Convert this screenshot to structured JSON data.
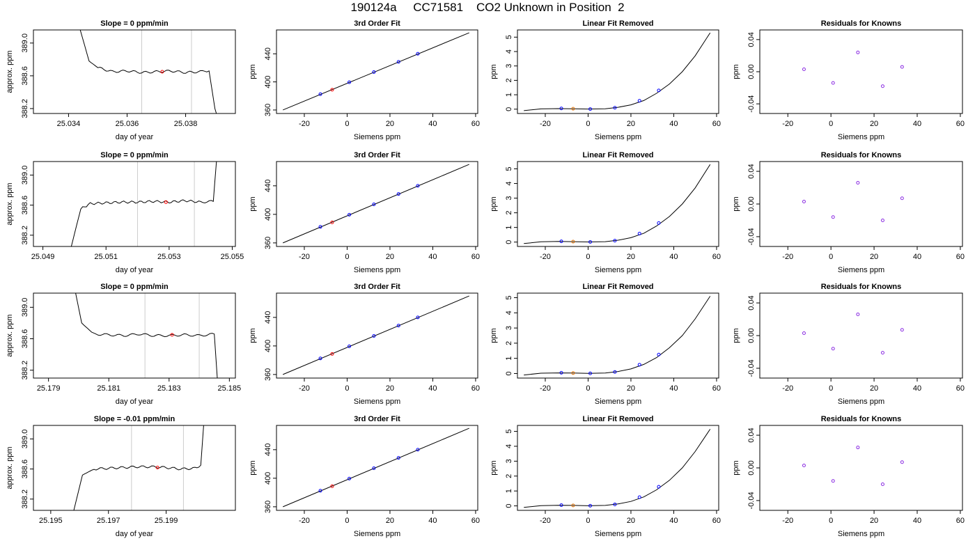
{
  "header": {
    "title": "190124a     CC71581    CO2 Unknown in Position  2"
  },
  "colors": {
    "trace": "#000000",
    "marker_line": "#cccccc",
    "unknown_point": "#ff0000",
    "known_point": "#0000ff",
    "fit_unknown": "#e07000",
    "residual": "#8a2be2",
    "frame": "#000000"
  },
  "chart_data": [
    {
      "type": "line",
      "title": "Slope =  0  ppm/min",
      "xlabel": "day of year",
      "ylabel": "approx. ppm",
      "xticks": [
        "25.034",
        "25.036",
        "25.038"
      ],
      "yticks": [
        "388.2",
        "388.6",
        "389.0"
      ],
      "xlim": [
        25.0328,
        25.0397
      ],
      "ylim": [
        388.14,
        389.16
      ],
      "x": [
        25.0344,
        25.0347,
        25.035,
        25.0355,
        25.036,
        25.0365,
        25.037,
        25.0375,
        25.038,
        25.0385,
        25.0388,
        25.039,
        25.03905
      ],
      "y": [
        389.16,
        388.78,
        388.7,
        388.65,
        388.66,
        388.64,
        388.65,
        388.66,
        388.64,
        388.65,
        388.66,
        388.2,
        388.14
      ],
      "markers": [
        25.0365,
        25.0382
      ],
      "point": {
        "x": 25.0372,
        "y": 388.65
      }
    },
    {
      "type": "scatter",
      "title": "3rd Order Fit",
      "xlabel": "Siemens ppm",
      "ylabel": "ppm",
      "xticks": [
        "-20",
        "0",
        "20",
        "40",
        "60"
      ],
      "yticks": [
        "360",
        "400",
        "440"
      ],
      "xlim": [
        -33,
        61
      ],
      "ylim": [
        355,
        474
      ],
      "fit": [
        [
          -30,
          360
        ],
        [
          57,
          470
        ]
      ],
      "knowns": [
        [
          -12.5,
          382.5
        ],
        [
          1,
          399.5
        ],
        [
          12.5,
          414
        ],
        [
          24,
          428.5
        ],
        [
          33,
          440
        ]
      ],
      "unknown": [
        -7,
        388.8
      ]
    },
    {
      "type": "line",
      "title": "Linear Fit Removed",
      "xlabel": "Siemens ppm",
      "ylabel": "ppm",
      "xticks": [
        "-20",
        "0",
        "20",
        "40",
        "60"
      ],
      "yticks": [
        "0",
        "1",
        "2",
        "3",
        "4",
        "5"
      ],
      "xlim": [
        -33,
        61
      ],
      "ylim": [
        -0.3,
        5.5
      ],
      "x": [
        -30,
        -22,
        -14,
        -7,
        0,
        8,
        14,
        20,
        26,
        32,
        38,
        44,
        50,
        57
      ],
      "y": [
        -0.1,
        0.02,
        0.04,
        0.03,
        0.01,
        0.03,
        0.13,
        0.3,
        0.6,
        1.1,
        1.75,
        2.6,
        3.7,
        5.3
      ],
      "knowns": [
        [
          -12.5,
          0.05
        ],
        [
          1,
          0.01
        ],
        [
          12.5,
          0.1
        ],
        [
          24,
          0.58
        ],
        [
          33,
          1.3
        ]
      ],
      "unknown": [
        -7,
        0.03
      ]
    },
    {
      "type": "scatter",
      "title": "Residuals for Knowns",
      "xlabel": "Siemens ppm",
      "ylabel": "ppm",
      "xticks": [
        "-20",
        "0",
        "20",
        "40",
        "60"
      ],
      "yticks": [
        "-0.04",
        "0.00",
        "0.04"
      ],
      "xlim": [
        -33,
        61
      ],
      "ylim": [
        -0.052,
        0.052
      ],
      "points": [
        [
          -12.5,
          0.003
        ],
        [
          1,
          -0.014
        ],
        [
          12.5,
          0.024
        ],
        [
          24,
          -0.018
        ],
        [
          33,
          0.006
        ]
      ]
    },
    {
      "type": "line",
      "title": "Slope =  0  ppm/min",
      "xlabel": "day of year",
      "ylabel": "approx. ppm",
      "xticks": [
        "25.049",
        "25.051",
        "25.053",
        "25.055"
      ],
      "yticks": [
        "388.2",
        "388.6",
        "389.0"
      ],
      "xlim": [
        25.0487,
        25.0551
      ],
      "ylim": [
        388.05,
        389.18
      ],
      "x": [
        25.0499,
        25.0502,
        25.0505,
        25.051,
        25.0515,
        25.052,
        25.0525,
        25.053,
        25.0535,
        25.054,
        25.0544,
        25.0545
      ],
      "y": [
        388.05,
        388.55,
        388.62,
        388.63,
        388.64,
        388.64,
        388.65,
        388.64,
        388.66,
        388.64,
        388.65,
        389.18
      ],
      "markers": [
        25.052,
        25.0538
      ],
      "point": {
        "x": 25.0529,
        "y": 388.64
      }
    },
    {
      "type": "scatter",
      "title": "3rd Order Fit",
      "xlabel": "Siemens ppm",
      "ylabel": "ppm",
      "xticks": [
        "-20",
        "0",
        "20",
        "40",
        "60"
      ],
      "yticks": [
        "360",
        "400",
        "440"
      ],
      "xlim": [
        -33,
        61
      ],
      "ylim": [
        355,
        474
      ],
      "fit": [
        [
          -30,
          360
        ],
        [
          57,
          470
        ]
      ],
      "knowns": [
        [
          -12.5,
          382.5
        ],
        [
          1,
          399.5
        ],
        [
          12.5,
          414
        ],
        [
          24,
          428.5
        ],
        [
          33,
          440
        ]
      ],
      "unknown": [
        -7,
        388.8
      ]
    },
    {
      "type": "line",
      "title": "Linear Fit Removed",
      "xlabel": "Siemens ppm",
      "ylabel": "ppm",
      "xticks": [
        "-20",
        "0",
        "20",
        "40",
        "60"
      ],
      "yticks": [
        "0",
        "1",
        "2",
        "3",
        "4",
        "5"
      ],
      "xlim": [
        -33,
        61
      ],
      "ylim": [
        -0.3,
        5.5
      ],
      "x": [
        -30,
        -22,
        -14,
        -7,
        0,
        8,
        14,
        20,
        26,
        32,
        38,
        44,
        50,
        57
      ],
      "y": [
        -0.1,
        0.02,
        0.04,
        0.03,
        0.01,
        0.03,
        0.13,
        0.3,
        0.6,
        1.1,
        1.75,
        2.6,
        3.7,
        5.3
      ],
      "knowns": [
        [
          -12.5,
          0.05
        ],
        [
          1,
          0.01
        ],
        [
          12.5,
          0.1
        ],
        [
          24,
          0.58
        ],
        [
          33,
          1.3
        ]
      ],
      "unknown": [
        -7,
        0.03
      ]
    },
    {
      "type": "scatter",
      "title": "Residuals for Knowns",
      "xlabel": "Siemens ppm",
      "ylabel": "ppm",
      "xticks": [
        "-20",
        "0",
        "20",
        "40",
        "60"
      ],
      "yticks": [
        "-0.04",
        "0.00",
        "0.04"
      ],
      "xlim": [
        -33,
        61
      ],
      "ylim": [
        -0.052,
        0.052
      ],
      "points": [
        [
          -12.5,
          0.003
        ],
        [
          1,
          -0.016
        ],
        [
          12.5,
          0.026
        ],
        [
          24,
          -0.02
        ],
        [
          33,
          0.007
        ]
      ]
    },
    {
      "type": "line",
      "title": "Slope =  0  ppm/min",
      "xlabel": "day of year",
      "ylabel": "approx. ppm",
      "xticks": [
        "25.179",
        "25.181",
        "25.183",
        "25.185"
      ],
      "yticks": [
        "388.2",
        "388.6",
        "389.0"
      ],
      "xlim": [
        25.1785,
        25.1852
      ],
      "ylim": [
        388.1,
        389.18
      ],
      "x": [
        25.1799,
        25.1801,
        25.1805,
        25.181,
        25.1815,
        25.182,
        25.1825,
        25.183,
        25.1835,
        25.184,
        25.1845,
        25.1846
      ],
      "y": [
        389.18,
        388.8,
        388.66,
        388.65,
        388.64,
        388.66,
        388.64,
        388.64,
        388.65,
        388.64,
        388.66,
        388.1
      ],
      "markers": [
        25.1822,
        25.184
      ],
      "point": {
        "x": 25.1831,
        "y": 388.65
      }
    },
    {
      "type": "scatter",
      "title": "3rd Order Fit",
      "xlabel": "Siemens ppm",
      "ylabel": "ppm",
      "xticks": [
        "-20",
        "0",
        "20",
        "40",
        "60"
      ],
      "yticks": [
        "360",
        "400",
        "440"
      ],
      "xlim": [
        -33,
        61
      ],
      "ylim": [
        355,
        474
      ],
      "fit": [
        [
          -30,
          360
        ],
        [
          57,
          470
        ]
      ],
      "knowns": [
        [
          -12.5,
          382.5
        ],
        [
          1,
          399.5
        ],
        [
          12.5,
          414
        ],
        [
          24,
          428.5
        ],
        [
          33,
          440
        ]
      ],
      "unknown": [
        -7,
        388.8
      ]
    },
    {
      "type": "line",
      "title": "Linear Fit Removed",
      "xlabel": "Siemens ppm",
      "ylabel": "ppm",
      "xticks": [
        "-20",
        "0",
        "20",
        "40",
        "60"
      ],
      "yticks": [
        "0",
        "1",
        "2",
        "3",
        "4",
        "5"
      ],
      "xlim": [
        -33,
        61
      ],
      "ylim": [
        -0.3,
        5.3
      ],
      "x": [
        -30,
        -22,
        -14,
        -7,
        0,
        8,
        14,
        20,
        26,
        32,
        38,
        44,
        50,
        57
      ],
      "y": [
        -0.1,
        0.02,
        0.04,
        0.03,
        0.01,
        0.03,
        0.13,
        0.3,
        0.6,
        1.05,
        1.7,
        2.5,
        3.6,
        5.1
      ],
      "knowns": [
        [
          -12.5,
          0.05
        ],
        [
          1,
          0.01
        ],
        [
          12.5,
          0.1
        ],
        [
          24,
          0.58
        ],
        [
          33,
          1.25
        ]
      ],
      "unknown": [
        -7,
        0.03
      ]
    },
    {
      "type": "scatter",
      "title": "Residuals for Knowns",
      "xlabel": "Siemens ppm",
      "ylabel": "ppm",
      "xticks": [
        "-20",
        "0",
        "20",
        "40",
        "60"
      ],
      "yticks": [
        "-0.04",
        "0.00",
        "0.04"
      ],
      "xlim": [
        -33,
        61
      ],
      "ylim": [
        -0.052,
        0.052
      ],
      "points": [
        [
          -12.5,
          0.003
        ],
        [
          1,
          -0.016
        ],
        [
          12.5,
          0.026
        ],
        [
          24,
          -0.021
        ],
        [
          33,
          0.007
        ]
      ]
    },
    {
      "type": "line",
      "title": "Slope =  -0.01  ppm/min",
      "xlabel": "day of year",
      "ylabel": "approx. ppm",
      "xticks": [
        "25.195",
        "25.197",
        "25.199"
      ],
      "yticks": [
        "388.2",
        "388.6",
        "389.0"
      ],
      "xlim": [
        25.1944,
        25.2014
      ],
      "ylim": [
        388.05,
        389.18
      ],
      "x": [
        25.1958,
        25.1961,
        25.1965,
        25.197,
        25.1975,
        25.198,
        25.1985,
        25.199,
        25.1995,
        25.2,
        25.2002,
        25.2003
      ],
      "y": [
        388.05,
        388.52,
        388.6,
        388.61,
        388.62,
        388.63,
        388.63,
        388.62,
        388.6,
        388.61,
        388.65,
        389.18
      ],
      "markers": [
        25.1978,
        25.1996
      ],
      "point": {
        "x": 25.1987,
        "y": 388.62
      }
    },
    {
      "type": "scatter",
      "title": "3rd Order Fit",
      "xlabel": "Siemens ppm",
      "ylabel": "ppm",
      "xticks": [
        "-20",
        "0",
        "20",
        "40",
        "60"
      ],
      "yticks": [
        "360",
        "400",
        "440"
      ],
      "xlim": [
        -33,
        61
      ],
      "ylim": [
        355,
        474
      ],
      "fit": [
        [
          -30,
          360
        ],
        [
          57,
          470
        ]
      ],
      "knowns": [
        [
          -12.5,
          382.5
        ],
        [
          1,
          399.5
        ],
        [
          12.5,
          414
        ],
        [
          24,
          428.5
        ],
        [
          33,
          440
        ]
      ],
      "unknown": [
        -7,
        388.8
      ]
    },
    {
      "type": "line",
      "title": "Linear Fit Removed",
      "xlabel": "Siemens ppm",
      "ylabel": "ppm",
      "xticks": [
        "-20",
        "0",
        "20",
        "40",
        "60"
      ],
      "yticks": [
        "0",
        "1",
        "2",
        "3",
        "4",
        "5"
      ],
      "xlim": [
        -33,
        61
      ],
      "ylim": [
        -0.3,
        5.4
      ],
      "x": [
        -30,
        -22,
        -14,
        -7,
        0,
        8,
        14,
        20,
        26,
        32,
        38,
        44,
        50,
        57
      ],
      "y": [
        -0.1,
        0.02,
        0.04,
        0.03,
        0.01,
        0.03,
        0.13,
        0.3,
        0.6,
        1.08,
        1.72,
        2.55,
        3.65,
        5.15
      ],
      "knowns": [
        [
          -12.5,
          0.05
        ],
        [
          1,
          0.01
        ],
        [
          12.5,
          0.1
        ],
        [
          24,
          0.58
        ],
        [
          33,
          1.28
        ]
      ],
      "unknown": [
        -7,
        0.03
      ]
    },
    {
      "type": "scatter",
      "title": "Residuals for Knowns",
      "xlabel": "Siemens ppm",
      "ylabel": "ppm",
      "xticks": [
        "-20",
        "0",
        "20",
        "40",
        "60"
      ],
      "yticks": [
        "-0.04",
        "0.00",
        "0.04"
      ],
      "xlim": [
        -33,
        61
      ],
      "ylim": [
        -0.052,
        0.052
      ],
      "points": [
        [
          -12.5,
          0.003
        ],
        [
          1,
          -0.016
        ],
        [
          12.5,
          0.025
        ],
        [
          24,
          -0.02
        ],
        [
          33,
          0.007
        ]
      ]
    }
  ]
}
